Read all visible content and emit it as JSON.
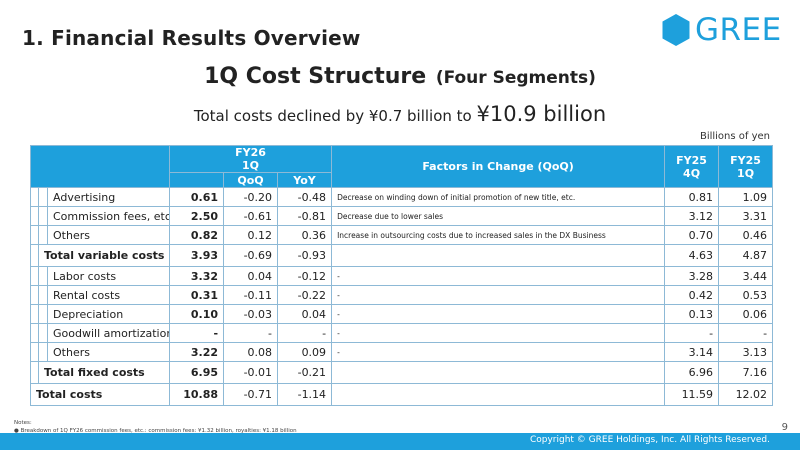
{
  "header": {
    "section_title": "1. Financial Results Overview",
    "logo_text": "GREE",
    "brand_color": "#1ea0dc"
  },
  "title": {
    "main": "1Q Cost Structure",
    "sub": "(Four Segments)"
  },
  "headline": {
    "prefix": "Total costs declined by ¥0.7 billion to ",
    "highlight": "¥10.9 billion"
  },
  "units": "Billions of yen",
  "table": {
    "headers": {
      "fy26": "FY26",
      "fy26_q": "1Q",
      "qoq": "QoQ",
      "yoy": "YoY",
      "factors": "Factors in Change (QoQ)",
      "fy25a": "FY25",
      "fy25a_q": "4Q",
      "fy25b": "FY25",
      "fy25b_q": "1Q"
    },
    "variable_items": [
      {
        "label": "Advertising",
        "fy26": "0.61",
        "qoq": "-0.20",
        "yoy": "-0.48",
        "factor": "Decrease on winding down of initial promotion of new title, etc.",
        "fy25_4q": "0.81",
        "fy25_1q": "1.09"
      },
      {
        "label": "Commission fees, etc.",
        "fy26": "2.50",
        "qoq": "-0.61",
        "yoy": "-0.81",
        "factor": "Decrease due to lower sales",
        "fy25_4q": "3.12",
        "fy25_1q": "3.31"
      },
      {
        "label": "Others",
        "fy26": "0.82",
        "qoq": "0.12",
        "yoy": "0.36",
        "factor": "Increase in outsourcing costs due to increased sales in the DX Business",
        "fy25_4q": "0.70",
        "fy25_1q": "0.46"
      }
    ],
    "variable_total": {
      "label": "Total variable costs",
      "fy26": "3.93",
      "qoq": "-0.69",
      "yoy": "-0.93",
      "factor": "",
      "fy25_4q": "4.63",
      "fy25_1q": "4.87"
    },
    "fixed_items": [
      {
        "label": "Labor costs",
        "fy26": "3.32",
        "qoq": "0.04",
        "yoy": "-0.12",
        "factor": "-",
        "fy25_4q": "3.28",
        "fy25_1q": "3.44"
      },
      {
        "label": "Rental costs",
        "fy26": "0.31",
        "qoq": "-0.11",
        "yoy": "-0.22",
        "factor": "-",
        "fy25_4q": "0.42",
        "fy25_1q": "0.53"
      },
      {
        "label": "Depreciation",
        "fy26": "0.10",
        "qoq": "-0.03",
        "yoy": "0.04",
        "factor": "-",
        "fy25_4q": "0.13",
        "fy25_1q": "0.06"
      },
      {
        "label": "Goodwill amortization",
        "fy26": "-",
        "qoq": "-",
        "yoy": "-",
        "factor": "-",
        "fy25_4q": "-",
        "fy25_1q": "-"
      },
      {
        "label": "Others",
        "fy26": "3.22",
        "qoq": "0.08",
        "yoy": "0.09",
        "factor": "-",
        "fy25_4q": "3.14",
        "fy25_1q": "3.13"
      }
    ],
    "fixed_total": {
      "label": "Total fixed costs",
      "fy26": "6.95",
      "qoq": "-0.01",
      "yoy": "-0.21",
      "factor": "",
      "fy25_4q": "6.96",
      "fy25_1q": "7.16"
    },
    "grand_total": {
      "label": "Total costs",
      "fy26": "10.88",
      "qoq": "-0.71",
      "yoy": "-1.14",
      "factor": "",
      "fy25_4q": "11.59",
      "fy25_1q": "12.02"
    }
  },
  "notes": {
    "heading": "Notes:",
    "items": [
      "Breakdown of 1Q FY26 commission fees, etc.: commission fees: ¥1.32 billion, royalties: ¥1.18 billion"
    ]
  },
  "page_number": "9",
  "footer": {
    "copyright": "Copyright © GREE Holdings, Inc. All Rights Reserved."
  }
}
